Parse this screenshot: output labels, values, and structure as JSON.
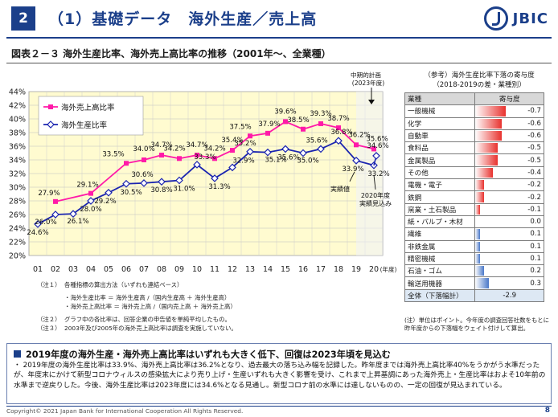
{
  "header": {
    "section_number": "2",
    "title": "（1）基礎データ　海外生産／売上高",
    "logo_text": "JBIC"
  },
  "figure_title": "図表２－３ 海外生産比率、海外売上高比率の推移（2001年～、全業種）",
  "chart_data": {
    "type": "line",
    "categories": [
      "01",
      "02",
      "03",
      "04",
      "05",
      "06",
      "07",
      "08",
      "09",
      "10",
      "11",
      "12",
      "13",
      "14",
      "15",
      "16",
      "17",
      "18",
      "19",
      "20"
    ],
    "x_unit": "(年度)",
    "ylim": [
      20,
      44
    ],
    "yticks": [
      "20%",
      "22%",
      "24%",
      "26%",
      "28%",
      "30%",
      "32%",
      "34%",
      "36%",
      "38%",
      "40%",
      "42%",
      "44%"
    ],
    "grid": true,
    "legend_position": "top-left",
    "series": [
      {
        "name": "海外売上高比率",
        "color": "#ff1aa8",
        "marker": "square",
        "values": [
          null,
          27.9,
          null,
          29.1,
          null,
          33.5,
          34.0,
          34.7,
          34.2,
          34.7,
          34.2,
          35.4,
          37.5,
          37.9,
          39.6,
          38.5,
          39.3,
          38.7,
          36.2,
          35.6
        ],
        "labels": [
          "",
          "27.9%",
          "",
          "29.1%",
          "",
          "33.5%",
          "34.0%",
          "34.7%",
          "34.2%",
          "34.7%",
          "34.2%",
          "35.4%",
          "37.5%",
          "37.9%",
          "39.6%",
          "38.5%",
          "39.3%",
          "38.7%",
          "36.2%",
          "35.6%"
        ]
      },
      {
        "name": "海外生産比率",
        "color": "#1a24b0",
        "marker": "diamond",
        "values": [
          24.6,
          26.0,
          26.1,
          28.0,
          29.2,
          30.5,
          30.6,
          30.8,
          31.0,
          33.3,
          31.3,
          32.9,
          35.2,
          35.1,
          35.6,
          35.0,
          35.6,
          36.8,
          33.9,
          33.2
        ],
        "labels": [
          "24.6%",
          "26.0%",
          "26.1%",
          "28.0%",
          "29.2%",
          "30.5%",
          "30.6%",
          "30.8%",
          "31.0%",
          "33.3%",
          "31.3%",
          "32.9%",
          "35.2%",
          "35.1%",
          "35.6%",
          "35.0%",
          "35.6%",
          "36.8%",
          "33.9%",
          "33.2%"
        ]
      }
    ],
    "plan": {
      "label_line1": "中期的計画",
      "label_line2": "(2023年度)",
      "value": 34.6,
      "value_label": "34.6%"
    },
    "annotations": {
      "actual": "実績値",
      "forecast_line1": "2020年度",
      "forecast_line2": "実績見込み"
    }
  },
  "contribution": {
    "title_line1": "（参考）海外生産比率下落の寄与度",
    "title_line2": "（2018-2019の差・業種別）",
    "header_industry": "業種",
    "header_value": "寄与度",
    "rows": [
      {
        "name": "一般機械",
        "value": -0.7,
        "label": "-0.7"
      },
      {
        "name": "化学",
        "value": -0.6,
        "label": "-0.6"
      },
      {
        "name": "自動車",
        "value": -0.6,
        "label": "-0.6"
      },
      {
        "name": "食料品",
        "value": -0.5,
        "label": "-0.5"
      },
      {
        "name": "金属製品",
        "value": -0.5,
        "label": "-0.5"
      },
      {
        "name": "その他",
        "value": -0.4,
        "label": "-0.4"
      },
      {
        "name": "電機・電子",
        "value": -0.2,
        "label": "-0.2"
      },
      {
        "name": "鉄鋼",
        "value": -0.2,
        "label": "-0.2"
      },
      {
        "name": "窯業・土石製品",
        "value": -0.1,
        "label": "-0.1"
      },
      {
        "name": "紙・パルプ・木材",
        "value": 0.0,
        "label": "0.0"
      },
      {
        "name": "繊維",
        "value": 0.1,
        "label": "0.1"
      },
      {
        "name": "非鉄金属",
        "value": 0.1,
        "label": "0.1"
      },
      {
        "name": "精密機械",
        "value": 0.1,
        "label": "0.1"
      },
      {
        "name": "石油・ゴム",
        "value": 0.2,
        "label": "0.2"
      },
      {
        "name": "輸送用機器",
        "value": 0.3,
        "label": "0.3"
      }
    ],
    "total_name": "全体（下落幅計）",
    "total_label": "-2.9",
    "negative_color": "#e8322e",
    "positive_color": "#4a78c8",
    "note": "(注）単位はポイント。今年度の調査回答社数をもとに昨年度からの下落幅をウェイト付けして算出。"
  },
  "notes": {
    "n1_label": "（注１）",
    "n1_text": "各種指標の算出方法（いずれも連結ベース）",
    "formula1": "・海外生産比率 ＝ 海外生産高 /（国内生産高 ＋ 海外生産高）",
    "formula2": "・海外売上高比率 ＝ 海外売上高 /（国内売上高 ＋ 海外売上高）",
    "n2_label": "（注２）",
    "n2_text": "グラフ中の各比率は、回答企業の申告値を単純平均したもの。",
    "n3_label": "（注３）",
    "n3_text": "2003年及び2005年の海外売上高比率は調査を実施していない。"
  },
  "summary": {
    "heading": "2019年度の海外生産・海外売上高比率はいずれも大きく低下、回復は2023年頃を見込む",
    "body": "・ 2019年度の海外生産比率は33.9%、海外売上高比率は36.2%となり、過去最大の落ち込み幅を記録した。昨年度までは海外売上高比率40%をうかがう水準だったが、年度末にかけて新型コロナウィルスの感染拡大により売り上げ・生産いずれも大きく影響を受け、これまで上昇基調にあった海外売上・生産比率はおよそ10年前の水準まで逆戻りした。今後、海外生産比率は2023年度には34.6%となる見通し。新型コロナ前の水準には達しないものの、一定の回復が見込まれている。"
  },
  "footer": {
    "copyright": "Copyright© 2021 Japan Bank for International Cooperation All Rights Reserved.",
    "page": "8"
  }
}
